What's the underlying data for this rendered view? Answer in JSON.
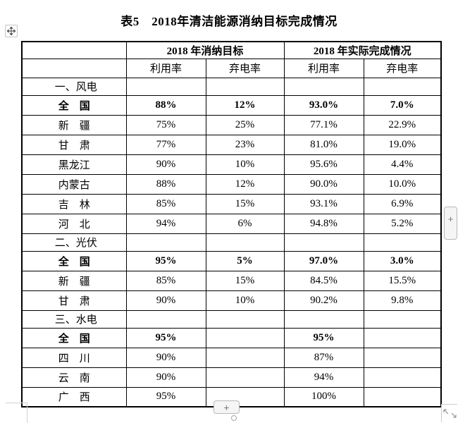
{
  "title": "表5　2018年清洁能源消纳目标完成情况",
  "table": {
    "header_groups": [
      {
        "label": ""
      },
      {
        "label": "2018 年消纳目标"
      },
      {
        "label": "2018 年实际完成情况"
      }
    ],
    "subheaders": [
      "利用率",
      "弃电率",
      "利用率",
      "弃电率"
    ],
    "sections": [
      {
        "name": "一、风电",
        "rows": [
          {
            "label": "全　国",
            "bold": true,
            "values": [
              "88%",
              "12%",
              "93.0%",
              "7.0%"
            ]
          },
          {
            "label": "新　疆",
            "bold": false,
            "values": [
              "75%",
              "25%",
              "77.1%",
              "22.9%"
            ]
          },
          {
            "label": "甘　肃",
            "bold": false,
            "values": [
              "77%",
              "23%",
              "81.0%",
              "19.0%"
            ]
          },
          {
            "label": "黑龙江",
            "bold": false,
            "values": [
              "90%",
              "10%",
              "95.6%",
              "4.4%"
            ]
          },
          {
            "label": "内蒙古",
            "bold": false,
            "values": [
              "88%",
              "12%",
              "90.0%",
              "10.0%"
            ]
          },
          {
            "label": "吉　林",
            "bold": false,
            "values": [
              "85%",
              "15%",
              "93.1%",
              "6.9%"
            ]
          },
          {
            "label": "河　北",
            "bold": false,
            "values": [
              "94%",
              "6%",
              "94.8%",
              "5.2%"
            ]
          }
        ]
      },
      {
        "name": "二、光伏",
        "rows": [
          {
            "label": "全　国",
            "bold": true,
            "values": [
              "95%",
              "5%",
              "97.0%",
              "3.0%"
            ]
          },
          {
            "label": "新　疆",
            "bold": false,
            "values": [
              "85%",
              "15%",
              "84.5%",
              "15.5%"
            ]
          },
          {
            "label": "甘　肃",
            "bold": false,
            "values": [
              "90%",
              "10%",
              "90.2%",
              "9.8%"
            ]
          }
        ]
      },
      {
        "name": "三、水电",
        "rows": [
          {
            "label": "全　国",
            "bold": true,
            "values": [
              "95%",
              "",
              "95%",
              ""
            ]
          },
          {
            "label": "四　川",
            "bold": false,
            "values": [
              "90%",
              "",
              "87%",
              ""
            ]
          },
          {
            "label": "云　南",
            "bold": false,
            "values": [
              "90%",
              "",
              "94%",
              ""
            ]
          },
          {
            "label": "广　西",
            "bold": false,
            "values": [
              "95%",
              "",
              "100%",
              ""
            ]
          }
        ]
      }
    ]
  },
  "controls": {
    "right_add_label": "+",
    "bottom_add_label": "+",
    "move_handle_icon": "four-way-arrows",
    "resize_handle_icon": "diagonal-arrows"
  },
  "colors": {
    "table_border": "#000000",
    "control_bg": "#f5f5f5",
    "control_border": "#b8b8b8",
    "text": "#000000"
  }
}
